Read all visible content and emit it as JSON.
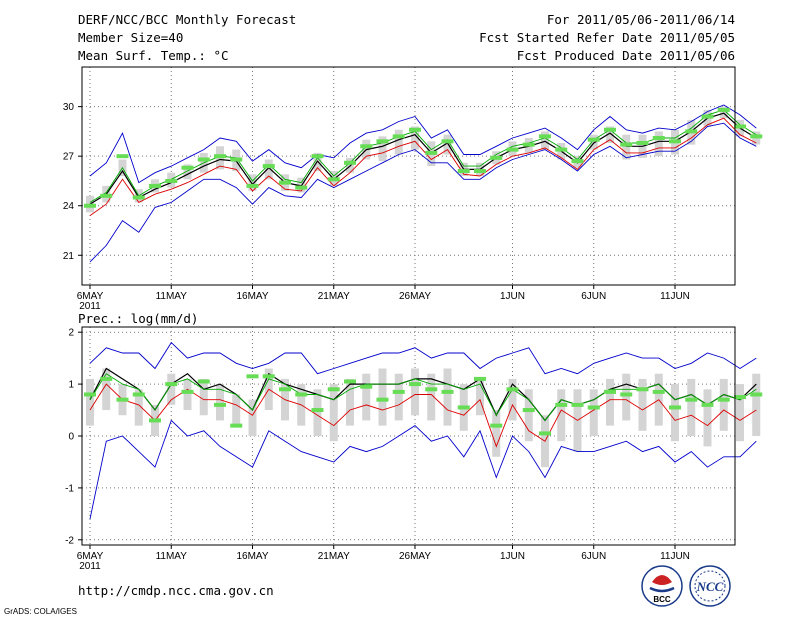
{
  "header": {
    "title": "DERF/NCC/BCC Monthly Forecast",
    "member_size": "Member Size=40",
    "variable": "Mean Surf. Temp.: °C",
    "period": "For 2011/05/06-2011/06/14",
    "fcst_started": "Fcst Started Refer Date 2011/05/05",
    "fcst_produced": "Fcst Produced Date 2011/05/06"
  },
  "footer": {
    "url": "http://cmdp.ncc.cma.gov.cn",
    "grads_credit": "GrADS: COLA/IGES",
    "logo_bcc": "BCC",
    "logo_ncc": "NCC"
  },
  "colors": {
    "bound_line": "#0000cc",
    "low_line": "#dd0000",
    "ensemble_mean": "#000000",
    "median_line": "#00aa00",
    "box": "#d4d4d4",
    "obs_mark": "#66dd55"
  },
  "chart_data": [
    {
      "type": "line",
      "name": "temperature-panel",
      "title": "Mean Surf. Temp.: °C",
      "xlabel": "",
      "ylabel": "°C",
      "ylim": [
        19.2,
        32.4
      ],
      "yticks": [
        21,
        24,
        27,
        30
      ],
      "grid": true,
      "x_tick_labels": [
        "6MAY",
        "11MAY",
        "16MAY",
        "21MAY",
        "26MAY",
        "1JUN",
        "6JUN",
        "11JUN"
      ],
      "x_tick_days": [
        0,
        5,
        10,
        15,
        20,
        26,
        31,
        36
      ],
      "first_tick_year": "2011",
      "days": 40,
      "series": [
        {
          "name": "max",
          "color": "#0000cc",
          "values": [
            25.8,
            26.6,
            28.4,
            25.4,
            26.0,
            26.4,
            26.9,
            27.4,
            28.1,
            27.9,
            26.7,
            27.4,
            26.6,
            26.3,
            27.1,
            26.9,
            27.8,
            28.4,
            28.6,
            29.1,
            29.4,
            28.1,
            28.6,
            27.1,
            27.1,
            27.6,
            28.1,
            28.4,
            28.7,
            28.1,
            27.4,
            28.6,
            29.4,
            28.6,
            28.4,
            28.7,
            28.6,
            29.1,
            29.7,
            30.1,
            29.5,
            28.7
          ]
        },
        {
          "name": "mean",
          "color": "#000000",
          "values": [
            24.1,
            24.7,
            26.1,
            24.5,
            25.0,
            25.4,
            25.9,
            26.4,
            26.8,
            26.7,
            25.3,
            26.3,
            25.4,
            25.2,
            26.7,
            25.6,
            26.4,
            27.4,
            27.6,
            28.0,
            28.3,
            27.2,
            27.8,
            26.2,
            26.2,
            26.9,
            27.4,
            27.6,
            27.9,
            27.3,
            26.6,
            27.8,
            28.4,
            27.6,
            27.6,
            27.9,
            27.9,
            28.5,
            29.3,
            29.6,
            28.7,
            28.1
          ]
        },
        {
          "name": "median",
          "color": "#00aa00",
          "values": [
            24.2,
            24.8,
            26.3,
            24.6,
            25.2,
            25.6,
            26.1,
            26.6,
            27.0,
            26.9,
            25.5,
            26.5,
            25.6,
            25.4,
            26.9,
            25.8,
            26.6,
            27.6,
            27.8,
            28.2,
            28.5,
            27.4,
            28.0,
            26.4,
            26.4,
            27.1,
            27.6,
            27.8,
            28.1,
            27.5,
            26.8,
            28.0,
            28.6,
            27.8,
            27.8,
            28.1,
            28.1,
            28.7,
            29.5,
            29.8,
            28.9,
            28.3
          ]
        },
        {
          "name": "lower",
          "color": "#dd0000",
          "values": [
            23.4,
            24.1,
            25.6,
            24.2,
            24.7,
            25.0,
            25.4,
            25.9,
            26.4,
            26.2,
            24.9,
            25.8,
            25.0,
            24.9,
            26.3,
            25.2,
            26.0,
            27.0,
            27.2,
            27.6,
            27.9,
            26.8,
            27.4,
            25.9,
            25.8,
            26.5,
            27.0,
            27.2,
            27.5,
            26.9,
            26.2,
            27.4,
            28.0,
            27.2,
            27.2,
            27.5,
            27.5,
            28.1,
            28.9,
            29.3,
            28.3,
            27.8
          ]
        },
        {
          "name": "min",
          "color": "#0000cc",
          "values": [
            20.6,
            21.6,
            23.1,
            22.4,
            23.9,
            24.2,
            24.9,
            25.6,
            25.6,
            25.1,
            24.1,
            25.1,
            24.6,
            24.5,
            25.6,
            25.1,
            25.6,
            26.1,
            26.6,
            27.1,
            27.4,
            26.6,
            26.6,
            25.6,
            25.6,
            26.3,
            26.8,
            27.1,
            27.4,
            26.8,
            26.1,
            27.1,
            27.6,
            26.9,
            27.1,
            27.3,
            27.3,
            27.9,
            28.8,
            29.0,
            28.1,
            27.6
          ]
        }
      ],
      "box_low": [
        23.6,
        24.2,
        25.8,
        24.2,
        24.8,
        25.1,
        25.6,
        26.0,
        26.2,
        26.1,
        24.9,
        25.6,
        24.9,
        24.8,
        26.1,
        25.2,
        26.0,
        26.8,
        26.7,
        27.1,
        27.4,
        26.4,
        27.1,
        25.8,
        25.8,
        26.5,
        27.0,
        27.2,
        27.4,
        26.8,
        26.3,
        27.4,
        27.8,
        26.8,
        26.9,
        27.0,
        27.1,
        27.7,
        28.8,
        29.3,
        28.2,
        27.7
      ],
      "box_high": [
        24.6,
        25.2,
        26.8,
        25.0,
        25.6,
        26.0,
        26.5,
        27.2,
        27.6,
        27.4,
        25.9,
        26.8,
        25.9,
        25.7,
        27.2,
        26.1,
        26.9,
        28.0,
        28.2,
        28.6,
        28.8,
        27.9,
        28.3,
        26.6,
        26.6,
        27.3,
        27.9,
        28.1,
        28.5,
        27.8,
        27.0,
        28.3,
        28.8,
        28.3,
        28.3,
        28.5,
        28.6,
        29.2,
        29.8,
        30.0,
        29.2,
        28.5
      ],
      "observed": [
        24.0,
        24.6,
        27.0,
        24.5,
        25.2,
        25.5,
        26.3,
        26.8,
        27.0,
        26.8,
        25.2,
        26.4,
        25.4,
        25.1,
        27.0,
        25.6,
        26.6,
        27.6,
        27.9,
        28.2,
        28.6,
        27.2,
        27.9,
        26.1,
        26.1,
        26.9,
        27.4,
        27.7,
        28.2,
        27.4,
        26.7,
        28.0,
        28.6,
        27.7,
        27.8,
        28.1,
        27.9,
        28.5,
        29.4,
        29.8,
        28.8,
        28.2
      ]
    },
    {
      "type": "line",
      "name": "precipitation-panel",
      "title": "Prec.: log(mm/d)",
      "xlabel": "",
      "ylabel": "log(mm/d)",
      "ylim": [
        -2.1,
        2.1
      ],
      "yticks": [
        -2,
        -1,
        0,
        1,
        2
      ],
      "grid": true,
      "x_tick_labels": [
        "6MAY",
        "11MAY",
        "16MAY",
        "21MAY",
        "26MAY",
        "1JUN",
        "6JUN",
        "11JUN"
      ],
      "x_tick_days": [
        0,
        5,
        10,
        15,
        20,
        26,
        31,
        36
      ],
      "first_tick_year": "2011",
      "days": 40,
      "series": [
        {
          "name": "max",
          "color": "#0000cc",
          "values": [
            1.4,
            1.7,
            1.6,
            1.6,
            1.3,
            1.8,
            1.5,
            1.6,
            1.6,
            1.4,
            1.3,
            1.4,
            1.6,
            1.6,
            1.2,
            1.3,
            1.4,
            1.5,
            1.6,
            1.6,
            1.7,
            1.5,
            1.6,
            1.6,
            1.3,
            1.5,
            1.6,
            1.7,
            1.2,
            1.3,
            1.2,
            1.4,
            1.5,
            1.6,
            1.5,
            1.5,
            1.3,
            1.4,
            1.6,
            1.5,
            1.3,
            1.5
          ]
        },
        {
          "name": "mean",
          "color": "#000000",
          "values": [
            0.7,
            1.3,
            1.1,
            0.9,
            0.5,
            1.0,
            1.2,
            0.9,
            1.0,
            0.8,
            0.5,
            1.2,
            1.0,
            0.9,
            0.8,
            0.7,
            1.0,
            1.0,
            1.0,
            1.0,
            1.1,
            1.1,
            1.0,
            0.9,
            1.1,
            0.4,
            1.0,
            0.7,
            0.3,
            0.7,
            0.6,
            0.7,
            0.9,
            1.0,
            0.9,
            1.0,
            0.7,
            0.8,
            0.6,
            0.8,
            0.7,
            1.0
          ]
        },
        {
          "name": "median",
          "color": "#00aa00",
          "values": [
            0.7,
            1.2,
            1.0,
            0.9,
            0.5,
            1.0,
            1.1,
            0.9,
            0.9,
            0.8,
            0.5,
            1.1,
            1.0,
            0.8,
            0.8,
            0.7,
            0.9,
            1.0,
            1.0,
            1.0,
            1.1,
            1.0,
            1.0,
            0.9,
            1.0,
            0.4,
            0.9,
            0.7,
            0.3,
            0.7,
            0.6,
            0.7,
            0.9,
            0.9,
            0.9,
            1.0,
            0.7,
            0.8,
            0.6,
            0.8,
            0.7,
            0.9
          ]
        },
        {
          "name": "lower",
          "color": "#dd0000",
          "values": [
            0.5,
            1.0,
            0.7,
            0.6,
            0.3,
            0.7,
            0.9,
            0.7,
            0.7,
            0.6,
            0.4,
            0.9,
            0.7,
            0.6,
            0.4,
            0.2,
            0.5,
            0.6,
            0.5,
            0.6,
            0.8,
            0.8,
            0.5,
            0.4,
            0.7,
            -0.2,
            0.6,
            0.1,
            -0.1,
            0.5,
            0.3,
            0.5,
            0.7,
            0.7,
            0.5,
            0.7,
            0.3,
            0.4,
            0.2,
            0.5,
            0.3,
            0.5
          ]
        },
        {
          "name": "min",
          "color": "#0000cc",
          "values": [
            -1.6,
            -0.1,
            0.0,
            -0.3,
            -0.6,
            0.3,
            0.0,
            0.1,
            -0.2,
            -0.4,
            -0.6,
            0.1,
            -0.1,
            -0.3,
            -0.4,
            -0.5,
            -0.2,
            -0.3,
            -0.2,
            0.0,
            0.2,
            -0.1,
            0.0,
            -0.4,
            0.1,
            -0.8,
            0.0,
            -0.3,
            -0.8,
            -0.2,
            -0.3,
            -0.3,
            -0.2,
            -0.1,
            -0.3,
            -0.2,
            -0.5,
            -0.3,
            -0.6,
            -0.4,
            -0.4,
            -0.1
          ]
        }
      ],
      "box_low": [
        0.2,
        0.5,
        0.4,
        0.2,
        0.0,
        0.6,
        0.5,
        0.4,
        0.3,
        0.2,
        0.0,
        0.5,
        0.3,
        0.2,
        0.0,
        -0.1,
        0.2,
        0.3,
        0.2,
        0.3,
        0.4,
        0.3,
        0.2,
        0.1,
        0.4,
        -0.4,
        0.3,
        -0.1,
        -0.6,
        -0.1,
        -0.3,
        0.0,
        0.2,
        0.3,
        0.1,
        0.2,
        -0.1,
        0.0,
        -0.2,
        0.1,
        -0.1,
        0.0
      ],
      "box_high": [
        1.1,
        1.3,
        1.0,
        0.9,
        0.6,
        1.2,
        1.1,
        1.1,
        1.0,
        0.8,
        0.7,
        1.3,
        1.1,
        1.0,
        0.9,
        1.0,
        1.1,
        1.2,
        1.3,
        1.2,
        1.3,
        1.2,
        1.3,
        1.0,
        1.1,
        0.5,
        1.1,
        0.9,
        0.4,
        0.9,
        0.9,
        0.9,
        1.1,
        1.2,
        1.1,
        1.2,
        1.0,
        1.1,
        0.9,
        1.1,
        1.0,
        1.2
      ],
      "observed": [
        0.8,
        1.1,
        0.7,
        0.8,
        0.3,
        1.0,
        0.85,
        1.05,
        0.6,
        0.2,
        1.15,
        1.15,
        0.9,
        0.8,
        0.5,
        0.9,
        1.05,
        0.95,
        0.7,
        0.85,
        1.0,
        0.9,
        0.85,
        0.55,
        1.1,
        0.2,
        0.9,
        0.5,
        0.05,
        0.6,
        0.6,
        0.55,
        0.85,
        0.8,
        0.9,
        0.85,
        0.55,
        0.7,
        0.6,
        0.7,
        0.75,
        0.8
      ]
    }
  ]
}
